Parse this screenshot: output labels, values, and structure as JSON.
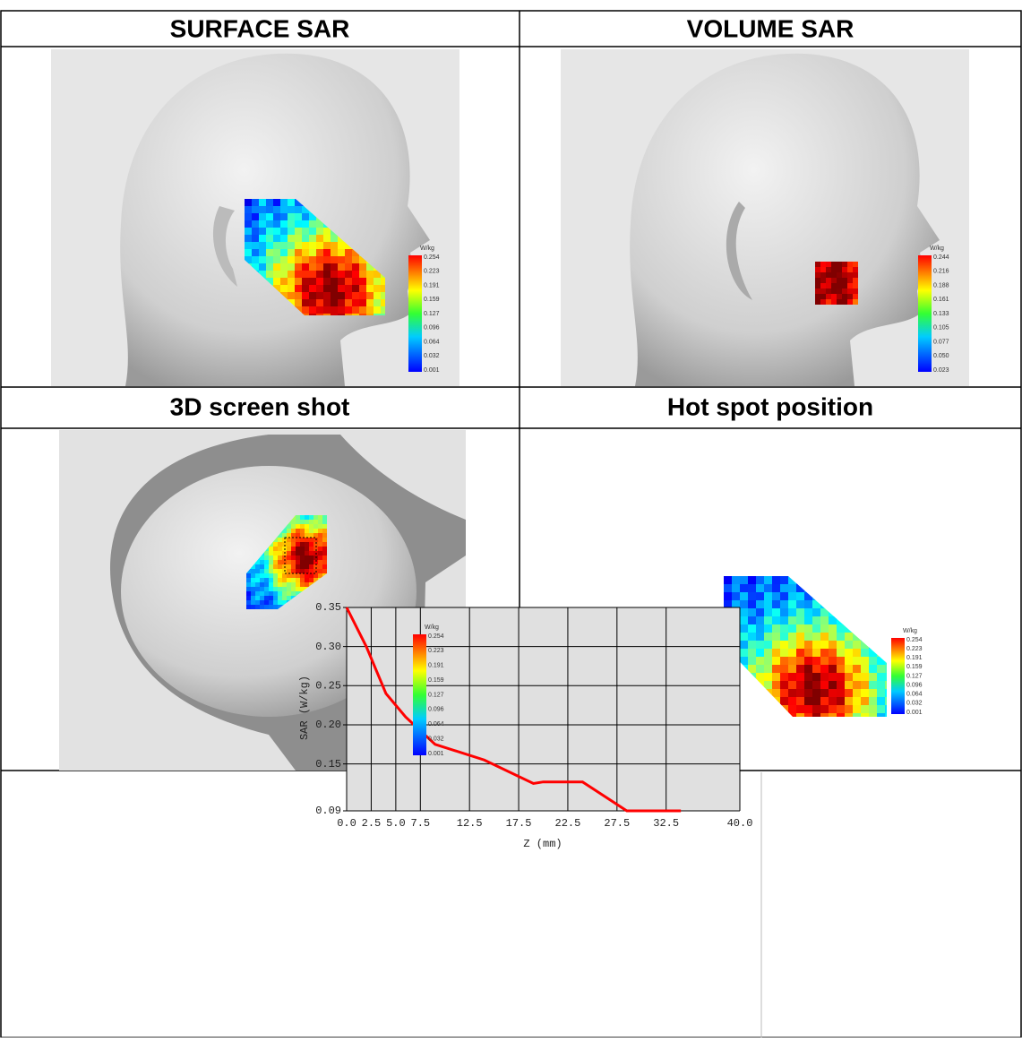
{
  "table": {
    "rows": [
      [
        "SURFACE SAR",
        "VOLUME SAR"
      ],
      [
        "3D screen shot",
        "Hot spot position"
      ]
    ]
  },
  "colorbars": {
    "unit": "W/kg",
    "surface": [
      "0.254",
      "0.223",
      "0.191",
      "0.159",
      "0.127",
      "0.096",
      "0.064",
      "0.032",
      "0.001"
    ],
    "volume": [
      "0.244",
      "0.216",
      "0.188",
      "0.161",
      "0.133",
      "0.105",
      "0.077",
      "0.050",
      "0.023"
    ]
  },
  "chart_data": {
    "type": "line",
    "x_label": "Z (mm)",
    "y_label": "SAR (W/kg)",
    "x": [
      0,
      2,
      4,
      6,
      9,
      14,
      19,
      20,
      24,
      28.5,
      34
    ],
    "series": [
      {
        "color": "#ff0000",
        "values": [
          0.35,
          0.3,
          0.24,
          0.21,
          0.175,
          0.155,
          0.125,
          0.127,
          0.127,
          0.09,
          0.09
        ]
      }
    ],
    "xlim": [
      0,
      40
    ],
    "xticks": [
      {
        "value": 0,
        "label": "0.0"
      },
      2.5,
      {
        "value": 5,
        "label": "5.0"
      },
      7.5,
      12.5,
      17.5,
      22.5,
      27.5,
      32.5,
      {
        "value": 40,
        "label": "40.0"
      }
    ],
    "ylim": [
      0.09,
      0.35
    ],
    "yticks": [
      0.09,
      0.15,
      {
        "value": 0.2,
        "label": "0.20"
      },
      0.25,
      {
        "value": 0.3,
        "label": "0.30"
      },
      0.35
    ],
    "grid": true
  }
}
